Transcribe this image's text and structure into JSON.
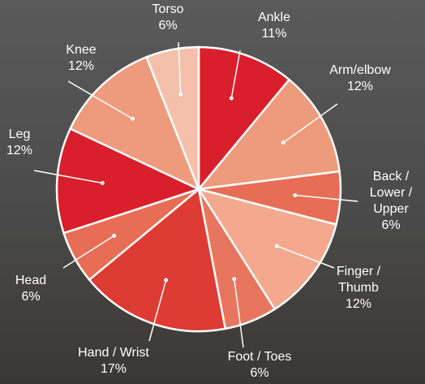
{
  "chart_data": {
    "type": "pie",
    "categories": [
      "Ankle",
      "Arm/elbow",
      "Back / Lower / Upper",
      "Finger / Thumb",
      "Foot / Toes",
      "Hand / Wrist",
      "Head",
      "Leg",
      "Knee",
      "Torso"
    ],
    "values": [
      11,
      12,
      6,
      12,
      6,
      17,
      6,
      12,
      12,
      6
    ],
    "value_labels": [
      "11%",
      "12%",
      "6%",
      "12%",
      "6%",
      "17%",
      "6%",
      "12%",
      "12%",
      "6%"
    ],
    "colors": [
      "#d91f2b",
      "#ee9a7c",
      "#e76e55",
      "#f4a98f",
      "#e8765e",
      "#dd3b33",
      "#e76e55",
      "#d91f2b",
      "#ee9a7c",
      "#f4c0aa"
    ]
  }
}
